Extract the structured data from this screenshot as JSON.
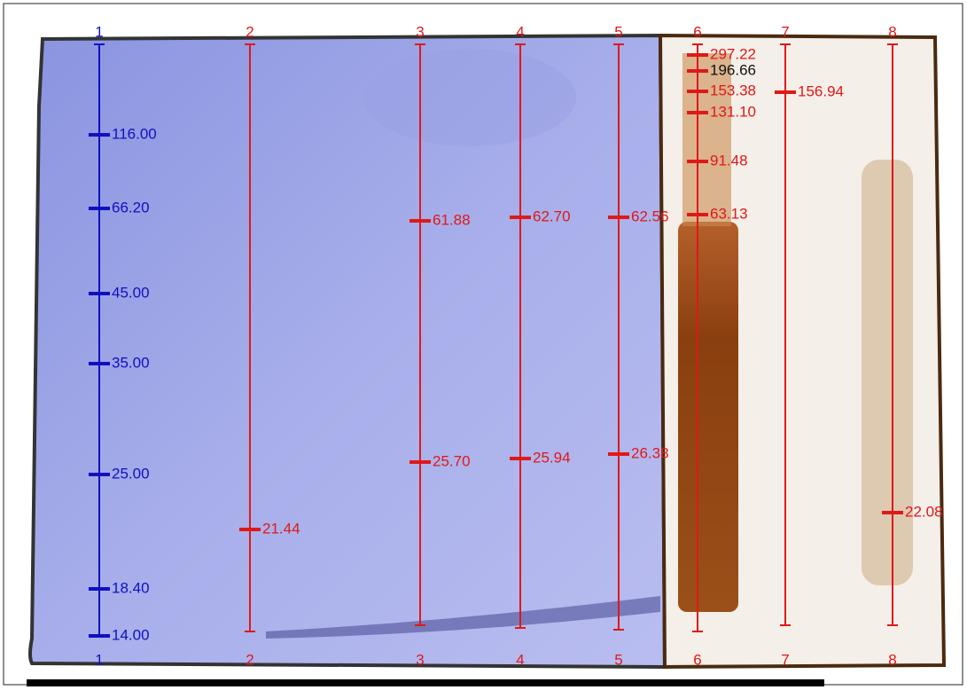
{
  "lanes": [
    {
      "top": "1",
      "bottom": "1",
      "bands": [
        "116.00",
        "66.20",
        "45.00",
        "35.00",
        "25.00",
        "18.40",
        "14.00"
      ]
    },
    {
      "top": "2",
      "bottom": "2",
      "bands": [
        "21.44"
      ]
    },
    {
      "top": "3",
      "bottom": "3",
      "bands": [
        "61.88",
        "25.70"
      ]
    },
    {
      "top": "4",
      "bottom": "4",
      "bands": [
        "62.70",
        "25.94"
      ]
    },
    {
      "top": "5",
      "bottom": "5",
      "bands": [
        "62.56",
        "26.38"
      ]
    },
    {
      "top": "6",
      "bottom": "6",
      "bands": [
        "297.22",
        "196.66",
        "153.38",
        "131.10",
        "91.48",
        "63.13"
      ]
    },
    {
      "top": "7",
      "bottom": "7",
      "bands": [
        "156.94"
      ]
    },
    {
      "top": "8",
      "bottom": "8",
      "bands": [
        "22.08"
      ]
    }
  ]
}
